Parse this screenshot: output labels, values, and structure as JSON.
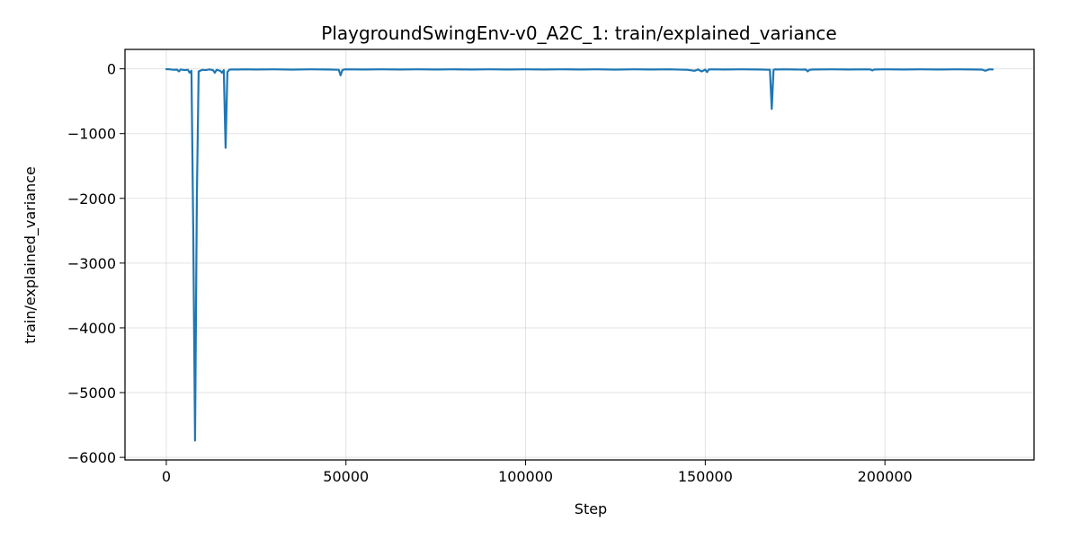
{
  "chart_data": {
    "type": "line",
    "title": "PlaygroundSwingEnv-v0_A2C_1: train/explained_variance",
    "xlabel": "Step",
    "ylabel": "train/explained_variance",
    "xlim": [
      -11500,
      241500
    ],
    "ylim": [
      -6040,
      300
    ],
    "x_ticks": [
      0,
      50000,
      100000,
      150000,
      200000
    ],
    "x_tick_labels": [
      "0",
      "50000",
      "100000",
      "150000",
      "200000"
    ],
    "y_ticks": [
      0,
      -1000,
      -2000,
      -3000,
      -4000,
      -5000,
      -6000
    ],
    "y_tick_labels": [
      "0",
      "−1000",
      "−2000",
      "−3000",
      "−4000",
      "−5000",
      "−6000"
    ],
    "grid": true,
    "legend": "none",
    "series": [
      {
        "color": "#1f77b4",
        "x": [
          0,
          1000,
          2000,
          3000,
          3500,
          4000,
          5000,
          6000,
          6500,
          7000,
          7500,
          8000,
          8500,
          9000,
          10000,
          11000,
          12000,
          13000,
          13500,
          14000,
          15000,
          15500,
          16000,
          16500,
          17000,
          17500,
          18000,
          20000,
          22000,
          25000,
          30000,
          35000,
          40000,
          45000,
          48000,
          48500,
          49000,
          49500,
          50000,
          55000,
          60000,
          65000,
          70000,
          75000,
          80000,
          85000,
          90000,
          95000,
          100000,
          105000,
          110000,
          115000,
          120000,
          125000,
          130000,
          135000,
          140000,
          145000,
          147000,
          148000,
          149000,
          150000,
          150500,
          151000,
          152000,
          155000,
          160000,
          165000,
          168000,
          168500,
          169000,
          169500,
          170000,
          172000,
          175000,
          177000,
          178000,
          178500,
          179000,
          180000,
          185000,
          190000,
          195000,
          196000,
          196500,
          197000,
          200000,
          205000,
          210000,
          215000,
          220000,
          225000,
          227000,
          228000,
          229000,
          230000
        ],
        "y": [
          -5,
          -8,
          -15,
          -12,
          -40,
          -10,
          -20,
          -15,
          -60,
          -30,
          -2500,
          -5740,
          -2000,
          -40,
          -15,
          -20,
          -10,
          -20,
          -60,
          -15,
          -30,
          -60,
          -20,
          -1220,
          -50,
          -15,
          -10,
          -10,
          -8,
          -10,
          -8,
          -12,
          -8,
          -10,
          -15,
          -100,
          -20,
          -10,
          -8,
          -10,
          -8,
          -10,
          -8,
          -10,
          -8,
          -10,
          -8,
          -10,
          -8,
          -10,
          -8,
          -10,
          -8,
          -12,
          -8,
          -10,
          -8,
          -15,
          -30,
          -10,
          -40,
          -12,
          -50,
          -10,
          -8,
          -10,
          -8,
          -10,
          -15,
          -620,
          -15,
          -8,
          -10,
          -8,
          -10,
          -12,
          -10,
          -40,
          -15,
          -10,
          -8,
          -10,
          -8,
          -10,
          -25,
          -10,
          -8,
          -10,
          -8,
          -10,
          -8,
          -10,
          -12,
          -30,
          -8,
          -10
        ]
      }
    ]
  }
}
